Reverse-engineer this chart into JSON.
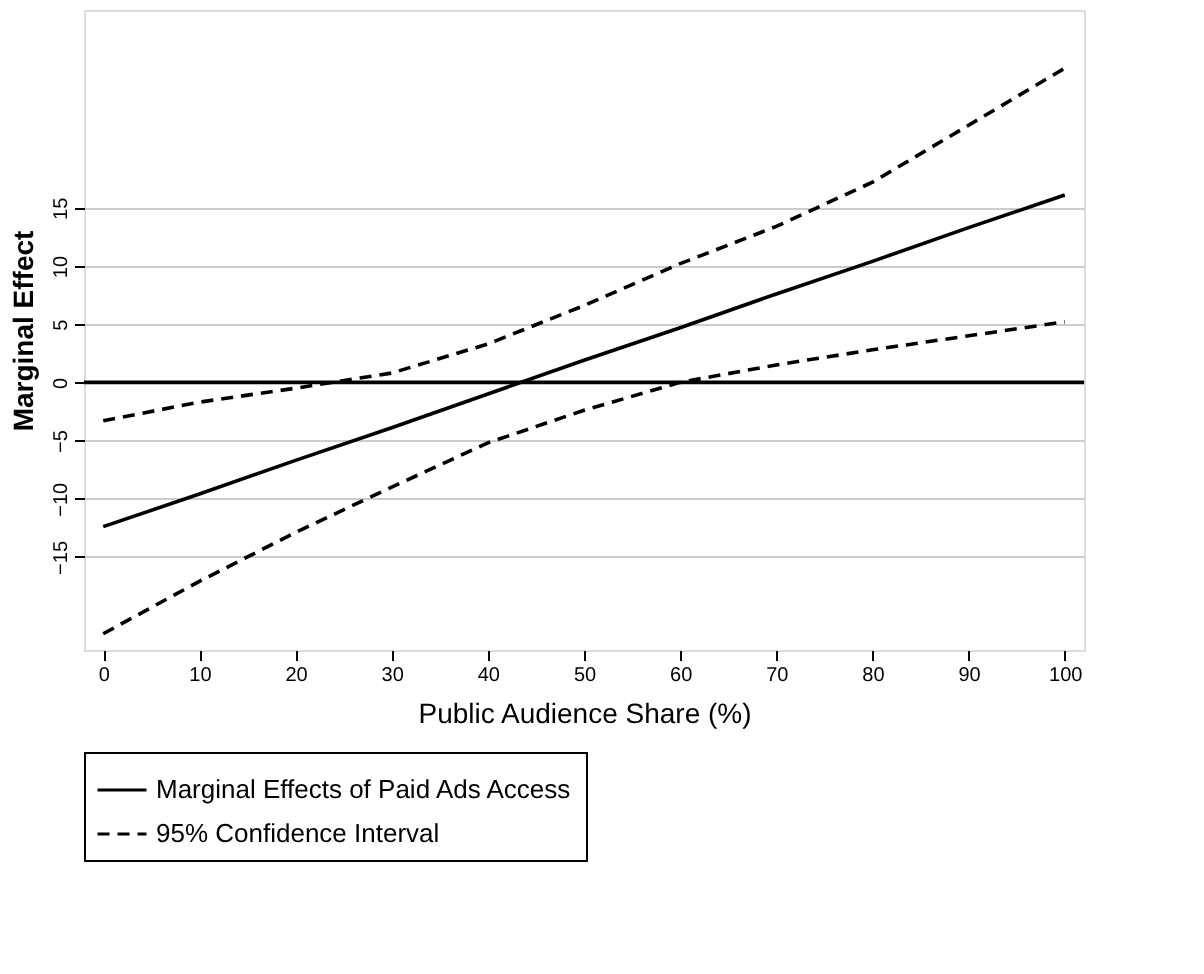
{
  "chart_data": {
    "type": "line",
    "xlabel": "Public Audience Share (%)",
    "ylabel": "Marginal Effect",
    "x": [
      0,
      10,
      20,
      30,
      40,
      50,
      60,
      70,
      80,
      90,
      100
    ],
    "series": [
      {
        "name": "Marginal Effects of Paid Ads Access",
        "color": "#000000",
        "line_style": "solid",
        "values": [
          -12.4,
          -9.6,
          -6.7,
          -3.9,
          -1.0,
          1.9,
          4.7,
          7.6,
          10.4,
          13.3,
          16.1
        ]
      },
      {
        "name": "95% Confidence Interval",
        "color": "#000000",
        "line_style": "dashed",
        "values": [
          -3.3,
          -1.7,
          -0.5,
          0.8,
          3.3,
          6.6,
          10.2,
          13.4,
          17.2,
          22.1,
          27.0
        ]
      },
      {
        "color": "#000000",
        "line_style": "dashed",
        "values": [
          -21.6,
          -17.1,
          -12.9,
          -9.0,
          -5.2,
          -2.4,
          0.0,
          1.5,
          2.8,
          4.0,
          5.2
        ]
      }
    ],
    "xlim": [
      -2,
      102
    ],
    "xticks": [
      0,
      10,
      20,
      30,
      40,
      50,
      60,
      70,
      80,
      90,
      100
    ],
    "ylim": [
      -23,
      32
    ],
    "yticks": [
      -15,
      -10,
      -5,
      0,
      5,
      10,
      15
    ],
    "ref_lines": [
      {
        "axis": "y",
        "value": 0,
        "color": "#000000",
        "line_style": "solid"
      }
    ],
    "grid": "y",
    "legend": "bottom",
    "marker": "none"
  }
}
